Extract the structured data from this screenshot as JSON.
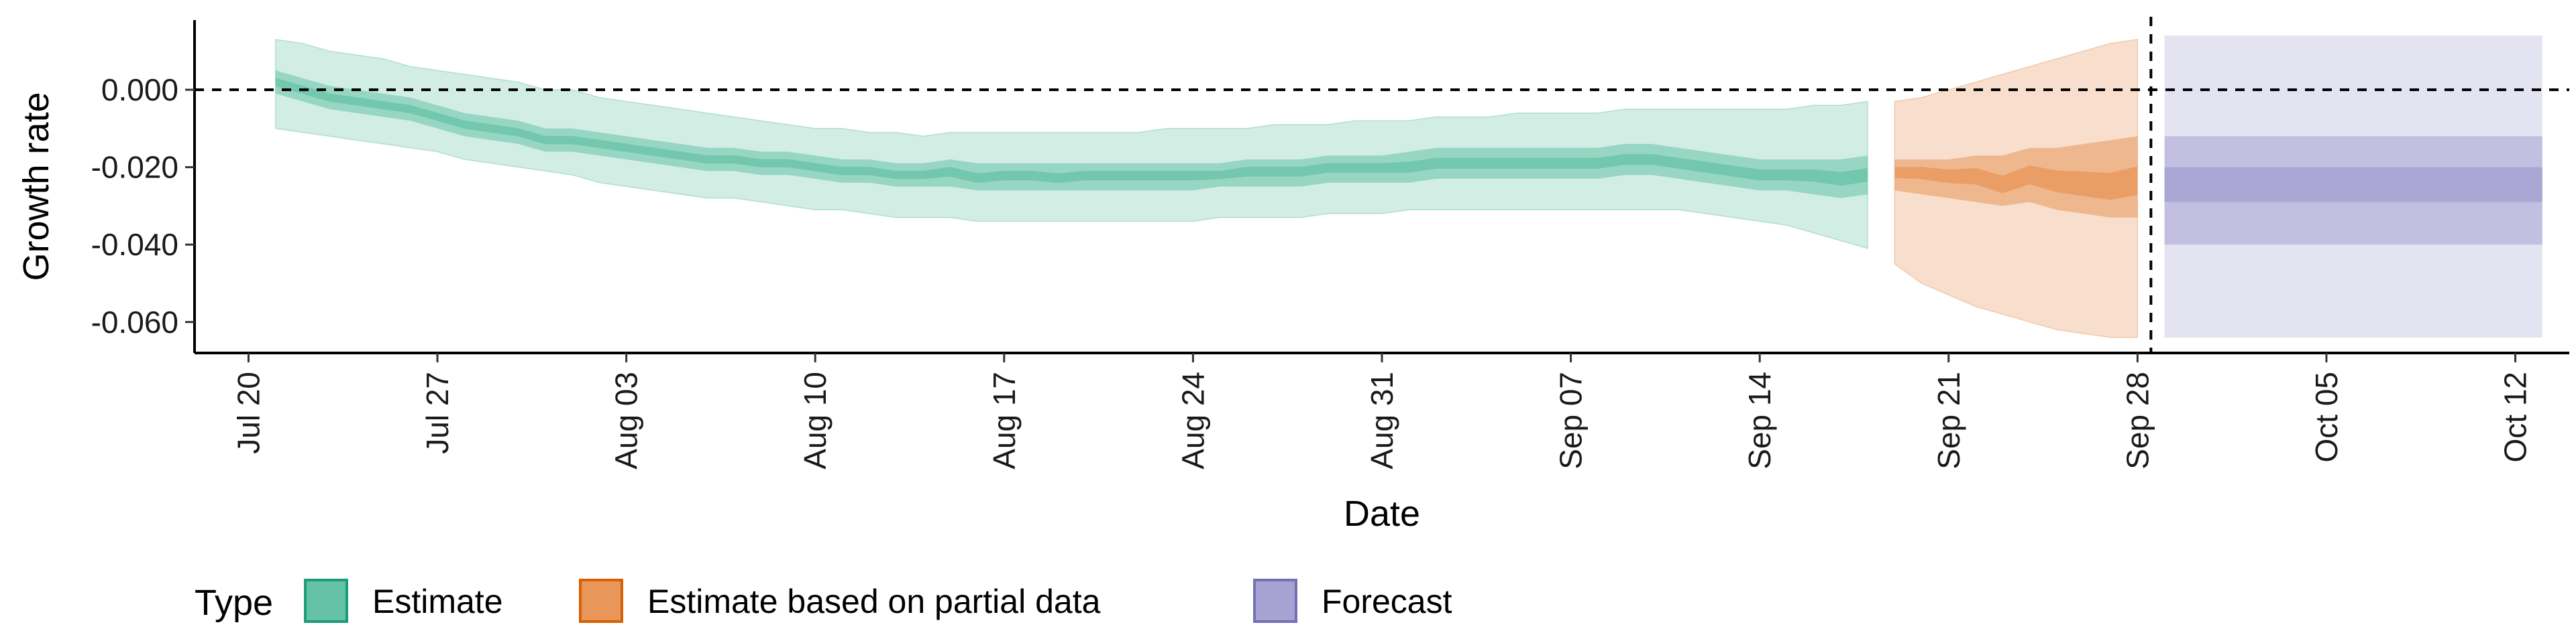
{
  "chart_data": {
    "type": "area",
    "xlabel": "Date",
    "ylabel": "Growth rate",
    "ylim": [
      -0.068,
      0.018
    ],
    "xlim": [
      "2020-07-18",
      "2020-10-14"
    ],
    "y_ticks": [
      "0.000",
      "-0.020",
      "-0.040",
      "-0.060"
    ],
    "y_tick_values": [
      0.0,
      -0.02,
      -0.04,
      -0.06
    ],
    "x_ticks": [
      "Jul 20",
      "Jul 27",
      "Aug 03",
      "Aug 10",
      "Aug 17",
      "Aug 24",
      "Aug 31",
      "Sep 07",
      "Sep 14",
      "Sep 21",
      "Sep 28",
      "Oct 05",
      "Oct 12"
    ],
    "x_tick_dates": [
      "2020-07-20",
      "2020-07-27",
      "2020-08-03",
      "2020-08-10",
      "2020-08-17",
      "2020-08-24",
      "2020-08-31",
      "2020-09-07",
      "2020-09-14",
      "2020-09-21",
      "2020-09-28",
      "2020-10-05",
      "2020-10-12"
    ],
    "reference_lines": [
      {
        "orientation": "horizontal",
        "y": 0.0,
        "style": "dashed"
      },
      {
        "orientation": "vertical",
        "x": "2020-09-28",
        "style": "dashed"
      }
    ],
    "grid": false,
    "legend": {
      "title": "Type",
      "position": "bottom-left",
      "entries": [
        {
          "label": "Estimate",
          "fill": "#66C2A5",
          "stroke": "#1B9E77"
        },
        {
          "label": "Estimate based on partial data",
          "fill": "#E8965A",
          "stroke": "#D95F02"
        },
        {
          "label": "Forecast",
          "fill": "#A6A2D2",
          "stroke": "#7570B3"
        }
      ]
    },
    "series": [
      {
        "name": "Estimate",
        "color": "#1B9E77",
        "x": [
          "2020-07-21",
          "2020-07-22",
          "2020-07-23",
          "2020-07-24",
          "2020-07-25",
          "2020-07-26",
          "2020-07-27",
          "2020-07-28",
          "2020-07-29",
          "2020-07-30",
          "2020-07-31",
          "2020-08-01",
          "2020-08-02",
          "2020-08-03",
          "2020-08-04",
          "2020-08-05",
          "2020-08-06",
          "2020-08-07",
          "2020-08-08",
          "2020-08-09",
          "2020-08-10",
          "2020-08-11",
          "2020-08-12",
          "2020-08-13",
          "2020-08-14",
          "2020-08-15",
          "2020-08-16",
          "2020-08-17",
          "2020-08-18",
          "2020-08-19",
          "2020-08-20",
          "2020-08-21",
          "2020-08-22",
          "2020-08-23",
          "2020-08-24",
          "2020-08-25",
          "2020-08-26",
          "2020-08-27",
          "2020-08-28",
          "2020-08-29",
          "2020-08-30",
          "2020-08-31",
          "2020-09-01",
          "2020-09-02",
          "2020-09-03",
          "2020-09-04",
          "2020-09-05",
          "2020-09-06",
          "2020-09-07",
          "2020-09-08",
          "2020-09-09",
          "2020-09-10",
          "2020-09-11",
          "2020-09-12",
          "2020-09-13",
          "2020-09-14",
          "2020-09-15",
          "2020-09-16",
          "2020-09-17",
          "2020-09-18"
        ],
        "median": [
          0.002,
          0.0,
          -0.002,
          -0.003,
          -0.004,
          -0.005,
          -0.007,
          -0.009,
          -0.01,
          -0.011,
          -0.013,
          -0.013,
          -0.014,
          -0.015,
          -0.016,
          -0.017,
          -0.018,
          -0.018,
          -0.019,
          -0.019,
          -0.02,
          -0.021,
          -0.021,
          -0.022,
          -0.022,
          -0.021,
          -0.023,
          -0.022,
          -0.022,
          -0.023,
          -0.022,
          -0.022,
          -0.022,
          -0.022,
          -0.022,
          -0.022,
          -0.021,
          -0.021,
          -0.021,
          -0.02,
          -0.02,
          -0.02,
          -0.02,
          -0.019,
          -0.019,
          -0.019,
          -0.019,
          -0.019,
          -0.019,
          -0.019,
          -0.018,
          -0.018,
          -0.019,
          -0.02,
          -0.021,
          -0.022,
          -0.022,
          -0.022,
          -0.023,
          -0.022
        ],
        "lower_50": [
          -0.001,
          -0.003,
          -0.005,
          -0.006,
          -0.007,
          -0.008,
          -0.01,
          -0.012,
          -0.013,
          -0.014,
          -0.016,
          -0.016,
          -0.017,
          -0.018,
          -0.019,
          -0.02,
          -0.021,
          -0.021,
          -0.022,
          -0.022,
          -0.023,
          -0.024,
          -0.024,
          -0.025,
          -0.025,
          -0.025,
          -0.026,
          -0.026,
          -0.026,
          -0.026,
          -0.026,
          -0.026,
          -0.026,
          -0.026,
          -0.026,
          -0.025,
          -0.025,
          -0.025,
          -0.025,
          -0.024,
          -0.024,
          -0.024,
          -0.024,
          -0.023,
          -0.023,
          -0.023,
          -0.023,
          -0.023,
          -0.023,
          -0.023,
          -0.022,
          -0.022,
          -0.023,
          -0.024,
          -0.025,
          -0.026,
          -0.026,
          -0.027,
          -0.028,
          -0.027
        ],
        "upper_50": [
          0.005,
          0.003,
          0.001,
          0.0,
          -0.001,
          -0.002,
          -0.004,
          -0.006,
          -0.007,
          -0.008,
          -0.01,
          -0.01,
          -0.011,
          -0.012,
          -0.013,
          -0.014,
          -0.015,
          -0.015,
          -0.016,
          -0.016,
          -0.017,
          -0.018,
          -0.018,
          -0.019,
          -0.019,
          -0.018,
          -0.019,
          -0.019,
          -0.019,
          -0.019,
          -0.019,
          -0.019,
          -0.019,
          -0.019,
          -0.019,
          -0.019,
          -0.018,
          -0.018,
          -0.018,
          -0.017,
          -0.017,
          -0.017,
          -0.016,
          -0.015,
          -0.015,
          -0.015,
          -0.015,
          -0.015,
          -0.015,
          -0.015,
          -0.014,
          -0.014,
          -0.015,
          -0.016,
          -0.017,
          -0.018,
          -0.018,
          -0.018,
          -0.018,
          -0.017
        ],
        "lower_90": [
          -0.01,
          -0.011,
          -0.012,
          -0.013,
          -0.014,
          -0.015,
          -0.016,
          -0.018,
          -0.019,
          -0.02,
          -0.021,
          -0.022,
          -0.024,
          -0.025,
          -0.026,
          -0.027,
          -0.028,
          -0.028,
          -0.029,
          -0.03,
          -0.031,
          -0.031,
          -0.032,
          -0.033,
          -0.033,
          -0.033,
          -0.034,
          -0.034,
          -0.034,
          -0.034,
          -0.034,
          -0.034,
          -0.034,
          -0.034,
          -0.034,
          -0.033,
          -0.033,
          -0.033,
          -0.033,
          -0.032,
          -0.032,
          -0.032,
          -0.031,
          -0.031,
          -0.031,
          -0.031,
          -0.031,
          -0.031,
          -0.031,
          -0.031,
          -0.031,
          -0.031,
          -0.031,
          -0.032,
          -0.033,
          -0.034,
          -0.035,
          -0.037,
          -0.039,
          -0.041
        ],
        "upper_90": [
          0.013,
          0.012,
          0.01,
          0.009,
          0.008,
          0.006,
          0.005,
          0.004,
          0.003,
          0.002,
          0.0,
          0.0,
          -0.002,
          -0.003,
          -0.004,
          -0.005,
          -0.006,
          -0.007,
          -0.008,
          -0.009,
          -0.01,
          -0.01,
          -0.011,
          -0.011,
          -0.012,
          -0.011,
          -0.011,
          -0.011,
          -0.011,
          -0.011,
          -0.011,
          -0.011,
          -0.011,
          -0.01,
          -0.01,
          -0.01,
          -0.01,
          -0.009,
          -0.009,
          -0.009,
          -0.008,
          -0.008,
          -0.008,
          -0.007,
          -0.007,
          -0.007,
          -0.006,
          -0.006,
          -0.006,
          -0.006,
          -0.005,
          -0.005,
          -0.005,
          -0.005,
          -0.005,
          -0.005,
          -0.005,
          -0.004,
          -0.004,
          -0.003
        ]
      },
      {
        "name": "Estimate based on partial data",
        "color": "#D95F02",
        "x": [
          "2020-09-19",
          "2020-09-20",
          "2020-09-21",
          "2020-09-22",
          "2020-09-23",
          "2020-09-24",
          "2020-09-25",
          "2020-09-26",
          "2020-09-27",
          "2020-09-28"
        ],
        "median": [
          -0.021,
          -0.021,
          -0.022,
          -0.022,
          -0.025,
          -0.022,
          -0.024,
          -0.025,
          -0.026,
          -0.024
        ],
        "lower_50": [
          -0.026,
          -0.027,
          -0.028,
          -0.029,
          -0.03,
          -0.029,
          -0.031,
          -0.032,
          -0.033,
          -0.033
        ],
        "upper_50": [
          -0.018,
          -0.018,
          -0.018,
          -0.017,
          -0.017,
          -0.015,
          -0.015,
          -0.014,
          -0.013,
          -0.012
        ],
        "lower_90": [
          -0.045,
          -0.05,
          -0.053,
          -0.056,
          -0.058,
          -0.06,
          -0.062,
          -0.063,
          -0.064,
          -0.064
        ],
        "upper_90": [
          -0.003,
          -0.002,
          0.0,
          0.002,
          0.004,
          0.006,
          0.008,
          0.01,
          0.012,
          0.013
        ]
      },
      {
        "name": "Forecast",
        "color": "#7570B3",
        "x": [
          "2020-09-29",
          "2020-10-13"
        ],
        "median": [
          -0.025,
          -0.025
        ],
        "lower_30": [
          -0.029,
          -0.029
        ],
        "upper_30": [
          -0.02,
          -0.02
        ],
        "lower_60": [
          -0.04,
          -0.04
        ],
        "upper_60": [
          -0.012,
          -0.012
        ],
        "lower_90": [
          -0.064,
          -0.064
        ],
        "upper_90": [
          0.014,
          0.014
        ]
      }
    ]
  }
}
